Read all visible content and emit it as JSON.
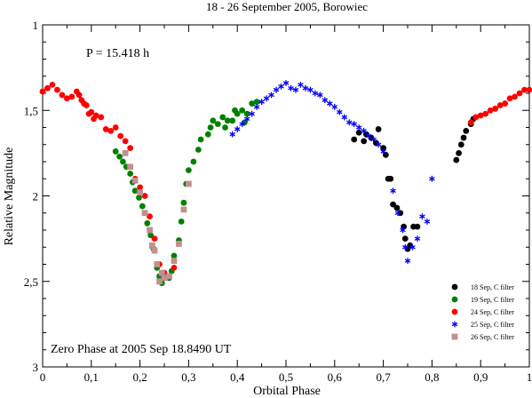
{
  "chart_data": {
    "type": "scatter",
    "title": "18 - 26 September 2005, Borowiec",
    "xlabel": "Orbital Phase",
    "ylabel": "Relative Magnitude",
    "xlim": [
      0,
      1
    ],
    "ylim": [
      1,
      3
    ],
    "y_inverted": true,
    "x_ticks": [
      "0",
      "0,1",
      "0,2",
      "0,3",
      "0,4",
      "0,5",
      "0,6",
      "0,7",
      "0,8",
      "0,9",
      "1"
    ],
    "y_ticks": [
      "1",
      "1,5",
      "2",
      "2,5",
      "3"
    ],
    "annotations": {
      "period": "P = 15.418 h",
      "zero_phase": "Zero Phase at 2005 Sep 18.8490 UT"
    },
    "legend_position": "bottom-right",
    "grid": false,
    "series": [
      {
        "name": "18 Sep, C filter",
        "marker": "circle",
        "color": "#000000",
        "points": [
          [
            0.64,
            1.67
          ],
          [
            0.65,
            1.63
          ],
          [
            0.66,
            1.68
          ],
          [
            0.665,
            1.64
          ],
          [
            0.675,
            1.66
          ],
          [
            0.685,
            1.69
          ],
          [
            0.69,
            1.61
          ],
          [
            0.7,
            1.72
          ],
          [
            0.705,
            1.76
          ],
          [
            0.71,
            1.9
          ],
          [
            0.715,
            1.9
          ],
          [
            0.72,
            2.05
          ],
          [
            0.728,
            2.07
          ],
          [
            0.735,
            2.1
          ],
          [
            0.742,
            2.18
          ],
          [
            0.745,
            2.25
          ],
          [
            0.75,
            2.31
          ],
          [
            0.755,
            2.29
          ],
          [
            0.762,
            2.18
          ],
          [
            0.77,
            2.18
          ],
          [
            0.85,
            1.79
          ],
          [
            0.855,
            1.75
          ],
          [
            0.86,
            1.7
          ],
          [
            0.865,
            1.66
          ],
          [
            0.87,
            1.62
          ],
          [
            0.88,
            1.58
          ],
          [
            0.885,
            1.55
          ]
        ]
      },
      {
        "name": "19 Sep, C filter",
        "marker": "circle",
        "color": "#008000",
        "points": [
          [
            0.15,
            1.74
          ],
          [
            0.158,
            1.77
          ],
          [
            0.165,
            1.8
          ],
          [
            0.172,
            1.83
          ],
          [
            0.18,
            1.87
          ],
          [
            0.185,
            1.92
          ],
          [
            0.19,
            1.97
          ],
          [
            0.198,
            2.01
          ],
          [
            0.205,
            2.06
          ],
          [
            0.21,
            2.1
          ],
          [
            0.215,
            2.16
          ],
          [
            0.222,
            2.23
          ],
          [
            0.228,
            2.31
          ],
          [
            0.235,
            2.42
          ],
          [
            0.24,
            2.47
          ],
          [
            0.245,
            2.51
          ],
          [
            0.26,
            2.48
          ],
          [
            0.265,
            2.44
          ],
          [
            0.27,
            2.35
          ],
          [
            0.28,
            2.26
          ],
          [
            0.285,
            2.15
          ],
          [
            0.29,
            2.04
          ],
          [
            0.295,
            1.93
          ],
          [
            0.3,
            1.85
          ],
          [
            0.31,
            1.8
          ],
          [
            0.32,
            1.73
          ],
          [
            0.325,
            1.67
          ],
          [
            0.34,
            1.64
          ],
          [
            0.345,
            1.6
          ],
          [
            0.35,
            1.56
          ],
          [
            0.36,
            1.58
          ],
          [
            0.37,
            1.54
          ],
          [
            0.375,
            1.6
          ],
          [
            0.38,
            1.56
          ],
          [
            0.39,
            1.56
          ],
          [
            0.395,
            1.5
          ],
          [
            0.4,
            1.52
          ],
          [
            0.41,
            1.5
          ],
          [
            0.415,
            1.57
          ],
          [
            0.42,
            1.52
          ],
          [
            0.43,
            1.46
          ],
          [
            0.44,
            1.45
          ]
        ]
      },
      {
        "name": "24 Sep, C filter",
        "marker": "circle",
        "color": "#ff0000",
        "points": [
          [
            0.0,
            1.39
          ],
          [
            0.01,
            1.37
          ],
          [
            0.02,
            1.35
          ],
          [
            0.03,
            1.38
          ],
          [
            0.04,
            1.41
          ],
          [
            0.05,
            1.43
          ],
          [
            0.06,
            1.42
          ],
          [
            0.07,
            1.39
          ],
          [
            0.075,
            1.41
          ],
          [
            0.08,
            1.44
          ],
          [
            0.085,
            1.46
          ],
          [
            0.09,
            1.47
          ],
          [
            0.095,
            1.52
          ],
          [
            0.1,
            1.51
          ],
          [
            0.105,
            1.55
          ],
          [
            0.11,
            1.53
          ],
          [
            0.12,
            1.54
          ],
          [
            0.13,
            1.61
          ],
          [
            0.14,
            1.62
          ],
          [
            0.15,
            1.6
          ],
          [
            0.16,
            1.65
          ],
          [
            0.17,
            1.68
          ],
          [
            0.18,
            1.72
          ],
          [
            0.19,
            1.9
          ],
          [
            0.2,
            1.95
          ],
          [
            0.21,
            2.0
          ],
          [
            0.22,
            2.12
          ],
          [
            0.23,
            2.25
          ],
          [
            0.24,
            2.4
          ],
          [
            0.25,
            2.45
          ],
          [
            0.27,
            2.42
          ],
          [
            0.88,
            1.57
          ],
          [
            0.89,
            1.54
          ],
          [
            0.9,
            1.53
          ],
          [
            0.91,
            1.52
          ],
          [
            0.92,
            1.5
          ],
          [
            0.93,
            1.49
          ],
          [
            0.94,
            1.47
          ],
          [
            0.95,
            1.46
          ],
          [
            0.96,
            1.43
          ],
          [
            0.97,
            1.42
          ],
          [
            0.98,
            1.4
          ],
          [
            0.99,
            1.38
          ],
          [
            1.0,
            1.38
          ]
        ]
      },
      {
        "name": "25 Sep, C filter",
        "marker": "asterisk",
        "color": "#0000ff",
        "points": [
          [
            0.39,
            1.64
          ],
          [
            0.4,
            1.61
          ],
          [
            0.41,
            1.58
          ],
          [
            0.42,
            1.55
          ],
          [
            0.43,
            1.52
          ],
          [
            0.44,
            1.48
          ],
          [
            0.45,
            1.45
          ],
          [
            0.46,
            1.43
          ],
          [
            0.47,
            1.41
          ],
          [
            0.48,
            1.38
          ],
          [
            0.49,
            1.36
          ],
          [
            0.5,
            1.34
          ],
          [
            0.51,
            1.37
          ],
          [
            0.52,
            1.38
          ],
          [
            0.53,
            1.35
          ],
          [
            0.54,
            1.37
          ],
          [
            0.55,
            1.38
          ],
          [
            0.56,
            1.4
          ],
          [
            0.57,
            1.41
          ],
          [
            0.58,
            1.44
          ],
          [
            0.59,
            1.46
          ],
          [
            0.6,
            1.48
          ],
          [
            0.61,
            1.51
          ],
          [
            0.62,
            1.54
          ],
          [
            0.63,
            1.57
          ],
          [
            0.64,
            1.58
          ],
          [
            0.65,
            1.6
          ],
          [
            0.66,
            1.62
          ],
          [
            0.67,
            1.65
          ],
          [
            0.68,
            1.67
          ],
          [
            0.69,
            1.7
          ],
          [
            0.7,
            1.74
          ],
          [
            0.72,
            1.97
          ],
          [
            0.73,
            2.1
          ],
          [
            0.74,
            2.2
          ],
          [
            0.745,
            2.3
          ],
          [
            0.75,
            2.38
          ],
          [
            0.76,
            2.3
          ],
          [
            0.77,
            2.25
          ],
          [
            0.78,
            2.12
          ],
          [
            0.79,
            2.15
          ],
          [
            0.8,
            1.9
          ]
        ]
      },
      {
        "name": "26 Sep, C filter",
        "marker": "square",
        "color": "#c09090",
        "points": [
          [
            0.17,
            1.75
          ],
          [
            0.18,
            1.83
          ],
          [
            0.19,
            1.91
          ],
          [
            0.2,
            1.98
          ],
          [
            0.21,
            2.1
          ],
          [
            0.22,
            2.2
          ],
          [
            0.225,
            2.29
          ],
          [
            0.23,
            2.32
          ],
          [
            0.235,
            2.4
          ],
          [
            0.24,
            2.5
          ],
          [
            0.245,
            2.45
          ],
          [
            0.25,
            2.48
          ],
          [
            0.26,
            2.47
          ],
          [
            0.27,
            2.38
          ],
          [
            0.28,
            2.28
          ],
          [
            0.29,
            2.08
          ],
          [
            0.3,
            1.93
          ]
        ]
      }
    ]
  }
}
